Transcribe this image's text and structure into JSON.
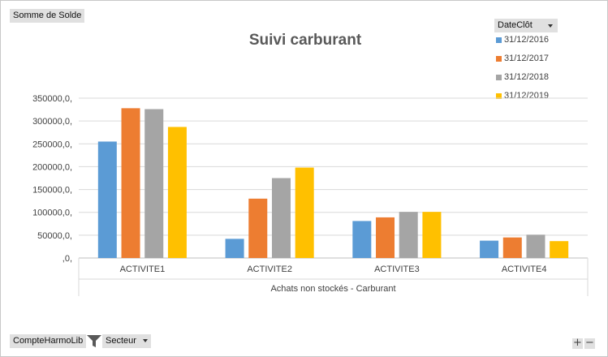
{
  "value_field": "Somme  de Solde",
  "column_field": "DateClôt",
  "row_fields": [
    "CompteHarmoLib",
    "Secteur"
  ],
  "zoom": {
    "plus": "+",
    "minus": "−"
  },
  "colors": {
    "accent": "#595959",
    "pill": "#e0e0e0"
  },
  "icons": {
    "filter": "funnel-icon",
    "dropdown": "chevron-down-icon"
  },
  "chart_data": {
    "type": "bar",
    "title": "Suivi carburant",
    "xlabel": "Achats non stockés - Carburant",
    "ylabel": "",
    "ylim": [
      0,
      350000
    ],
    "yticks": [
      0,
      50000,
      100000,
      150000,
      200000,
      250000,
      300000,
      350000
    ],
    "ytick_labels": [
      ",0,",
      "50000,0,",
      "100000,0,",
      "150000,0,",
      "200000,0,",
      "250000,0,",
      "300000,0,",
      "350000,0,"
    ],
    "grid": true,
    "legend_position": "top-right",
    "categories": [
      "ACTIVITE1",
      "ACTIVITE2",
      "ACTIVITE3",
      "ACTIVITE4"
    ],
    "series": [
      {
        "name": "31/12/2016",
        "color": "#5b9bd5",
        "values": [
          255000,
          42000,
          81000,
          38000
        ]
      },
      {
        "name": "31/12/2017",
        "color": "#ed7d31",
        "values": [
          328000,
          130000,
          89000,
          45000
        ]
      },
      {
        "name": "31/12/2018",
        "color": "#a5a5a5",
        "values": [
          326000,
          175000,
          101000,
          51000
        ]
      },
      {
        "name": "31/12/2019",
        "color": "#ffc000",
        "values": [
          287000,
          198000,
          101000,
          37000
        ]
      }
    ]
  }
}
